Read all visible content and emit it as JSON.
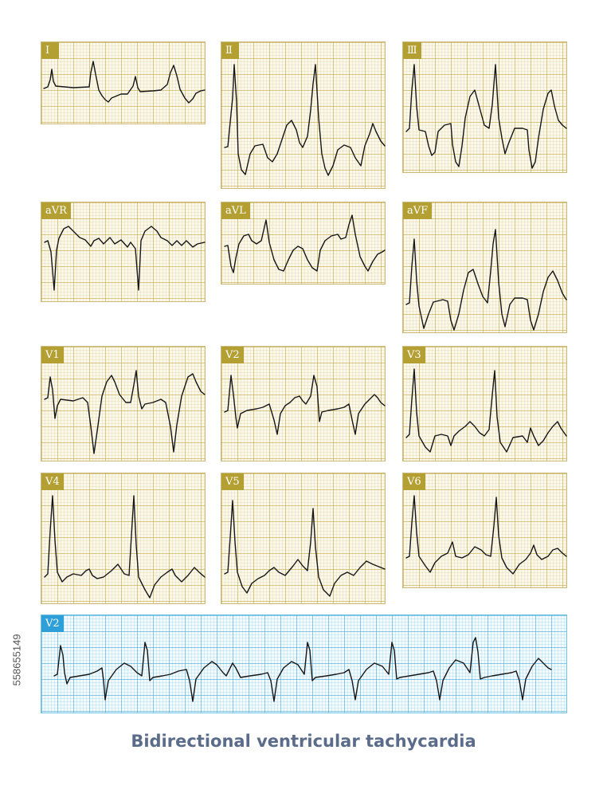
{
  "leads": [
    {
      "id": "I",
      "label": "Ⅰ"
    },
    {
      "id": "II",
      "label": "Ⅱ"
    },
    {
      "id": "III",
      "label": "Ⅲ"
    },
    {
      "id": "aVR",
      "label": "aVR"
    },
    {
      "id": "aVL",
      "label": "aVL"
    },
    {
      "id": "aVF",
      "label": "aVF"
    },
    {
      "id": "V1",
      "label": "V1"
    },
    {
      "id": "V2",
      "label": "V2"
    },
    {
      "id": "V3",
      "label": "V3"
    },
    {
      "id": "V4",
      "label": "V4"
    },
    {
      "id": "V5",
      "label": "V5"
    },
    {
      "id": "V6",
      "label": "V6"
    }
  ],
  "rhythm_strip": {
    "lead": "V2",
    "label": "V2"
  },
  "caption": "Bidirectional ventricular tachycardia",
  "stock_id": "558655149",
  "colors": {
    "grid_yellow": "#c4a846",
    "label_gold": "#b49f33",
    "grid_blue": "#46aad7",
    "label_blue": "#2e9fd8",
    "trace": "#161616",
    "caption": "#5a6c8a"
  }
}
